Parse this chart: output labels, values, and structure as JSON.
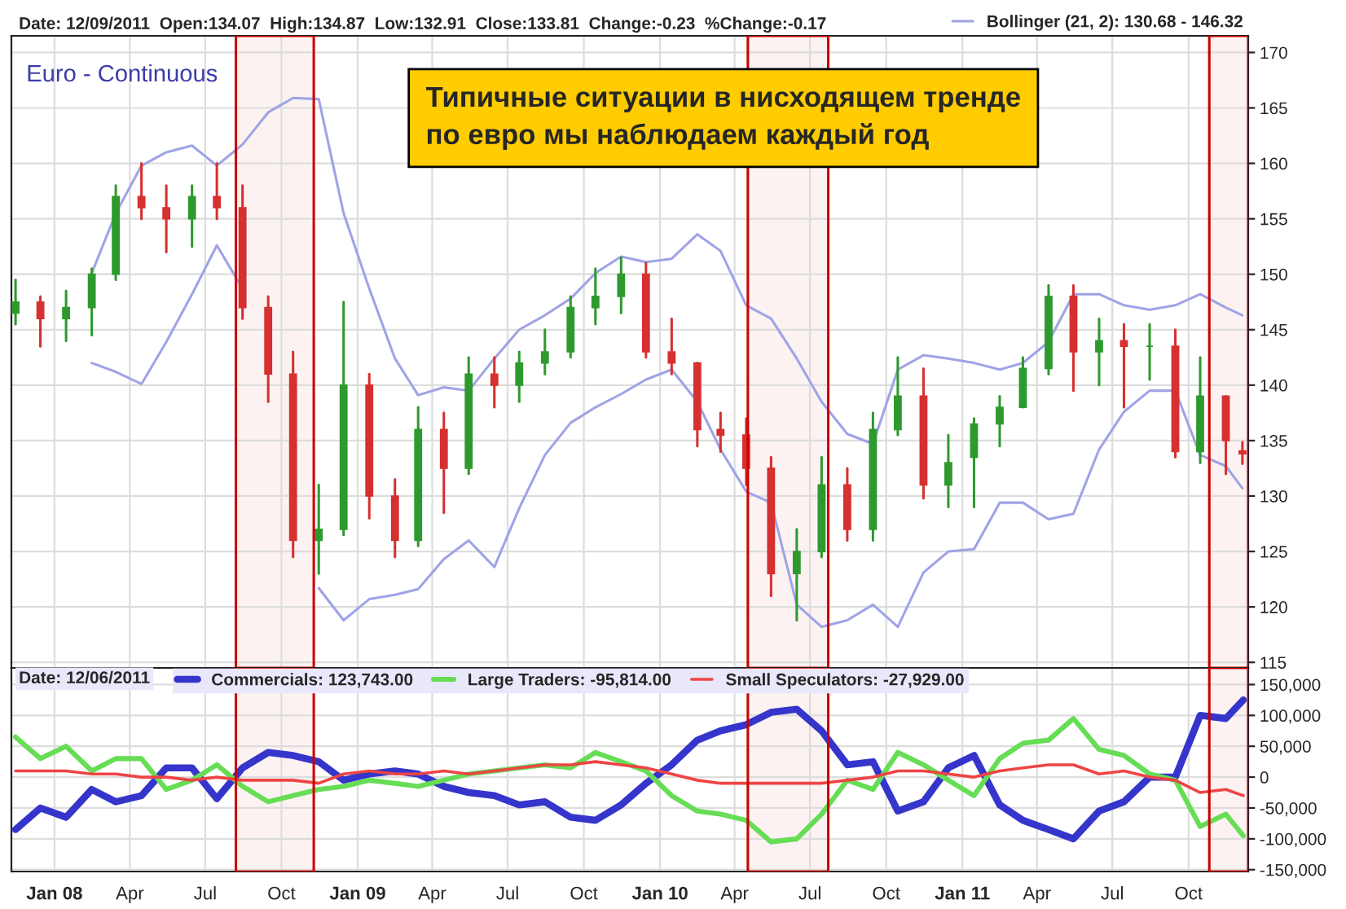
{
  "chart_data": [
    {
      "type": "candlestick",
      "title": "Euro - Continuous",
      "annotations": [
        "Date: 12/09/2011  Open:134.07  High:134.87  Low:132.91  Close:133.81  Change:-0.23  %Change:-0.17",
        "Типичные ситуации в нисходящем тренде\nпо евро мы наблюдаем каждый год"
      ],
      "x": [
        "2007-11-15",
        "2007-12-15",
        "2008-01-15",
        "2008-02-15",
        "2008-03-15",
        "2008-04-15",
        "2008-05-15",
        "2008-06-15",
        "2008-07-15",
        "2008-08-15",
        "2008-09-15",
        "2008-10-15",
        "2008-11-15",
        "2008-12-15",
        "2009-01-15",
        "2009-02-15",
        "2009-03-15",
        "2009-04-15",
        "2009-05-15",
        "2009-06-15",
        "2009-07-15",
        "2009-08-15",
        "2009-09-15",
        "2009-10-15",
        "2009-11-15",
        "2009-12-15",
        "2010-01-15",
        "2010-02-15",
        "2010-03-15",
        "2010-04-15",
        "2010-05-15",
        "2010-06-15",
        "2010-07-15",
        "2010-08-15",
        "2010-09-15",
        "2010-10-15",
        "2010-11-15",
        "2010-12-15",
        "2011-01-15",
        "2011-02-15",
        "2011-03-15",
        "2011-04-15",
        "2011-05-15",
        "2011-06-15",
        "2011-07-15",
        "2011-08-15",
        "2011-09-15",
        "2011-10-15",
        "2011-11-15",
        "2011-12-05"
      ],
      "ohlc": [
        [
          146.5,
          149.5,
          145.5,
          147.5
        ],
        [
          147.5,
          148,
          143.5,
          146
        ],
        [
          146,
          148.5,
          144,
          147
        ],
        [
          147,
          150.5,
          144.5,
          150
        ],
        [
          150,
          158,
          149.5,
          157
        ],
        [
          157,
          160,
          155,
          156
        ],
        [
          156,
          158,
          152,
          155
        ],
        [
          155,
          158,
          152.5,
          157
        ],
        [
          157,
          160,
          155,
          156
        ],
        [
          156,
          158,
          146,
          147
        ],
        [
          147,
          148,
          138.5,
          141
        ],
        [
          141,
          143,
          124.5,
          126
        ],
        [
          126,
          131,
          123,
          127
        ],
        [
          127,
          147.5,
          126.5,
          140
        ],
        [
          140,
          141,
          128,
          130
        ],
        [
          130,
          131.5,
          124.5,
          126
        ],
        [
          126,
          138,
          125.5,
          136
        ],
        [
          136,
          137.5,
          128.5,
          132.5
        ],
        [
          132.5,
          142.5,
          132,
          141
        ],
        [
          141,
          142.5,
          138,
          140
        ],
        [
          140,
          143,
          138.5,
          142
        ],
        [
          142,
          145,
          141,
          143
        ],
        [
          143,
          148,
          142.5,
          147
        ],
        [
          147,
          150.5,
          145.5,
          148
        ],
        [
          148,
          151.5,
          146.5,
          150
        ],
        [
          150,
          151,
          142.5,
          143
        ],
        [
          143,
          146,
          141,
          142
        ],
        [
          142,
          142,
          134.5,
          136
        ],
        [
          136,
          137.5,
          134,
          135.5
        ],
        [
          135.5,
          137,
          131,
          132.5
        ],
        [
          132.5,
          133.5,
          121,
          123
        ],
        [
          123,
          127,
          118.8,
          125
        ],
        [
          125,
          133.5,
          124.5,
          131
        ],
        [
          131,
          132.5,
          126,
          127
        ],
        [
          127,
          137.5,
          126,
          136
        ],
        [
          136,
          142.5,
          135.5,
          139
        ],
        [
          139,
          141.5,
          129.8,
          131
        ],
        [
          131,
          135.5,
          129,
          133
        ],
        [
          133.5,
          137,
          129,
          136.5
        ],
        [
          136.5,
          139,
          134.5,
          138
        ],
        [
          138,
          142.5,
          138,
          141.5
        ],
        [
          141.5,
          149,
          141,
          148
        ],
        [
          148,
          149,
          139.5,
          143
        ],
        [
          143,
          146,
          140,
          144
        ],
        [
          144,
          145.5,
          138,
          143.5
        ],
        [
          143.5,
          145.5,
          140.5,
          143.5
        ],
        [
          143.5,
          145,
          133.5,
          134
        ],
        [
          134,
          142.5,
          133,
          139
        ],
        [
          139,
          139,
          132,
          135
        ],
        [
          134.07,
          134.87,
          132.91,
          133.81
        ]
      ],
      "series": [
        {
          "name": "Bollinger (21, 2): 130.68 - 146.32",
          "type": "line",
          "color": "#9fa3e6",
          "values": [
            null,
            null,
            null,
            150.1,
            155.5,
            159.8,
            161,
            161.6,
            159.8,
            161.7,
            164.6,
            165.9,
            165.8,
            155.5,
            148.7,
            142.4,
            139.1,
            139.8,
            139.5,
            142.4,
            145,
            146.3,
            147.8,
            150.1,
            151.6,
            151.1,
            151.4,
            153.6,
            152.1,
            147.2,
            146,
            142.4,
            138.5,
            135.6,
            134.7,
            141.4,
            142.7,
            142.4,
            142,
            141.4,
            142,
            143.9,
            148.2,
            148.2,
            147.2,
            146.8,
            147.2,
            148.2,
            147,
            146.3
          ]
        },
        {
          "type": "line",
          "color": "#9fa3e6",
          "values": [
            null,
            null,
            null,
            142,
            141.2,
            140.1,
            143.9,
            148.2,
            152.6,
            148.7,
            null,
            null,
            121.7,
            118.8,
            120.7,
            121.1,
            121.6,
            124.3,
            126,
            123.6,
            128.9,
            133.7,
            136.6,
            138,
            139.2,
            140.5,
            141.4,
            138.5,
            134.2,
            130.4,
            129.4,
            120.2,
            118.2,
            118.8,
            120.2,
            118.2,
            123.1,
            125,
            125.2,
            129.4,
            129.4,
            127.9,
            128.4,
            134.2,
            137.6,
            139.5,
            139.5,
            133.7,
            132.7,
            130.7
          ]
        }
      ],
      "xlim": [
        "2007-11-10",
        "2011-12-12"
      ],
      "xticks": [
        {
          "value": "2008-01-01",
          "label": null
        },
        {
          "value": "2008-04-01",
          "label": null
        },
        {
          "value": "2008-07-01",
          "label": null
        },
        {
          "value": "2008-10-01",
          "label": null
        },
        {
          "value": "2009-01-01",
          "label": null
        },
        {
          "value": "2009-04-01",
          "label": null
        },
        {
          "value": "2009-07-01",
          "label": null
        },
        {
          "value": "2009-10-01",
          "label": null
        },
        {
          "value": "2010-01-01",
          "label": null
        },
        {
          "value": "2010-04-01",
          "label": null
        },
        {
          "value": "2010-07-01",
          "label": null
        },
        {
          "value": "2010-10-01",
          "label": null
        },
        {
          "value": "2011-01-01",
          "label": null
        },
        {
          "value": "2011-04-01",
          "label": null
        },
        {
          "value": "2011-07-01",
          "label": null
        },
        {
          "value": "2011-10-01",
          "label": null
        }
      ],
      "ylim": [
        114.5,
        171.5
      ],
      "yticks": [
        115,
        120,
        125,
        130,
        135,
        140,
        145,
        150,
        155,
        160,
        165,
        170
      ],
      "tick_labels": "y",
      "grid": true,
      "legend": "top",
      "bands": [
        {
          "axis": "x",
          "from": "2008-08-07",
          "to": "2008-11-09",
          "color": "#cc0000"
        },
        {
          "axis": "x",
          "from": "2010-04-17",
          "to": "2010-07-23",
          "color": "#cc0000"
        },
        {
          "axis": "x",
          "from": "2011-10-26",
          "to": "2011-12-12",
          "color": "#cc0000"
        }
      ]
    },
    {
      "type": "line",
      "annotations": [
        "Date: 12/06/2011"
      ],
      "x": [
        "2007-11-15",
        "2007-12-15",
        "2008-01-15",
        "2008-02-15",
        "2008-03-15",
        "2008-04-15",
        "2008-05-15",
        "2008-06-15",
        "2008-07-15",
        "2008-08-15",
        "2008-09-15",
        "2008-10-15",
        "2008-11-15",
        "2008-12-15",
        "2009-01-15",
        "2009-02-15",
        "2009-03-15",
        "2009-04-15",
        "2009-05-15",
        "2009-06-15",
        "2009-07-15",
        "2009-08-15",
        "2009-09-15",
        "2009-10-15",
        "2009-11-15",
        "2009-12-15",
        "2010-01-15",
        "2010-02-15",
        "2010-03-15",
        "2010-04-15",
        "2010-05-15",
        "2010-06-15",
        "2010-07-15",
        "2010-08-15",
        "2010-09-15",
        "2010-10-15",
        "2010-11-15",
        "2010-12-15",
        "2011-01-15",
        "2011-02-15",
        "2011-03-15",
        "2011-04-15",
        "2011-05-15",
        "2011-06-15",
        "2011-07-15",
        "2011-08-15",
        "2011-09-15",
        "2011-10-15",
        "2011-11-15",
        "2011-12-06"
      ],
      "series": [
        {
          "name": "Commercials: 123,743.00",
          "color": "#3535cc",
          "values": [
            -85000,
            -50000,
            -65000,
            -20000,
            -40000,
            -30000,
            15000,
            15000,
            -35000,
            15000,
            40000,
            35000,
            25000,
            -5000,
            5000,
            10000,
            5000,
            -15000,
            -25000,
            -30000,
            -45000,
            -40000,
            -65000,
            -70000,
            -45000,
            -10000,
            20000,
            60000,
            75000,
            85000,
            105000,
            110000,
            75000,
            20000,
            25000,
            -55000,
            -40000,
            15000,
            35000,
            -45000,
            -70000,
            -85000,
            -100000,
            -55000,
            -40000,
            0,
            0,
            100000,
            95000,
            125000
          ]
        },
        {
          "name": "Large Traders: -95,814.00",
          "color": "#66dd55",
          "values": [
            65000,
            30000,
            50000,
            10000,
            30000,
            30000,
            -20000,
            -5000,
            20000,
            -15000,
            -40000,
            -30000,
            -20000,
            -15000,
            -5000,
            -10000,
            -15000,
            -5000,
            5000,
            10000,
            15000,
            20000,
            15000,
            40000,
            25000,
            10000,
            -30000,
            -55000,
            -60000,
            -70000,
            -105000,
            -100000,
            -60000,
            -5000,
            -20000,
            40000,
            20000,
            -5000,
            -30000,
            30000,
            55000,
            60000,
            95000,
            45000,
            35000,
            5000,
            -5000,
            -80000,
            -60000,
            -95000
          ]
        },
        {
          "name": "Small Speculators: -27,929.00",
          "color": "#ee4444",
          "values": [
            10000,
            10000,
            10000,
            5000,
            5000,
            0,
            0,
            -5000,
            0,
            -5000,
            -5000,
            -5000,
            -10000,
            5000,
            10000,
            5000,
            5000,
            10000,
            5000,
            10000,
            15000,
            20000,
            20000,
            25000,
            20000,
            15000,
            5000,
            -5000,
            -10000,
            -10000,
            -10000,
            -10000,
            -10000,
            -5000,
            0,
            10000,
            10000,
            5000,
            0,
            10000,
            15000,
            20000,
            20000,
            5000,
            10000,
            0,
            -5000,
            -25000,
            -20000,
            -30000
          ]
        }
      ],
      "xlim": [
        "2007-11-10",
        "2011-12-12"
      ],
      "xticks": [
        {
          "value": "2008-01-01",
          "label": "Jan 08"
        },
        {
          "value": "2008-04-01",
          "label": "Apr"
        },
        {
          "value": "2008-07-01",
          "label": "Jul"
        },
        {
          "value": "2008-10-01",
          "label": "Oct"
        },
        {
          "value": "2009-01-01",
          "label": "Jan 09"
        },
        {
          "value": "2009-04-01",
          "label": "Apr"
        },
        {
          "value": "2009-07-01",
          "label": "Jul"
        },
        {
          "value": "2009-10-01",
          "label": "Oct"
        },
        {
          "value": "2010-01-01",
          "label": "Jan 10"
        },
        {
          "value": "2010-04-01",
          "label": "Apr"
        },
        {
          "value": "2010-07-01",
          "label": "Jul"
        },
        {
          "value": "2010-10-01",
          "label": "Oct"
        },
        {
          "value": "2011-01-01",
          "label": "Jan 11"
        },
        {
          "value": "2011-04-01",
          "label": "Apr"
        },
        {
          "value": "2011-07-01",
          "label": "Jul"
        },
        {
          "value": "2011-10-01",
          "label": "Oct"
        }
      ],
      "ylim": [
        -153000,
        177000
      ],
      "yticks": [
        {
          "value": -150000,
          "label": "-150,000"
        },
        {
          "value": -100000,
          "label": "-100,000"
        },
        {
          "value": -50000,
          "label": "-50,000"
        },
        0,
        {
          "value": 50000,
          "label": "50,000"
        },
        {
          "value": 100000,
          "label": "100,000"
        },
        {
          "value": 150000,
          "label": "150,000"
        }
      ],
      "grid": true,
      "legend": "top left",
      "bands": [
        {
          "axis": "x",
          "from": "2008-08-07",
          "to": "2008-11-09",
          "color": "#cc0000"
        },
        {
          "axis": "x",
          "from": "2010-04-17",
          "to": "2010-07-23",
          "color": "#cc0000"
        },
        {
          "axis": "x",
          "from": "2011-10-26",
          "to": "2011-12-12",
          "color": "#cc0000"
        }
      ]
    }
  ]
}
